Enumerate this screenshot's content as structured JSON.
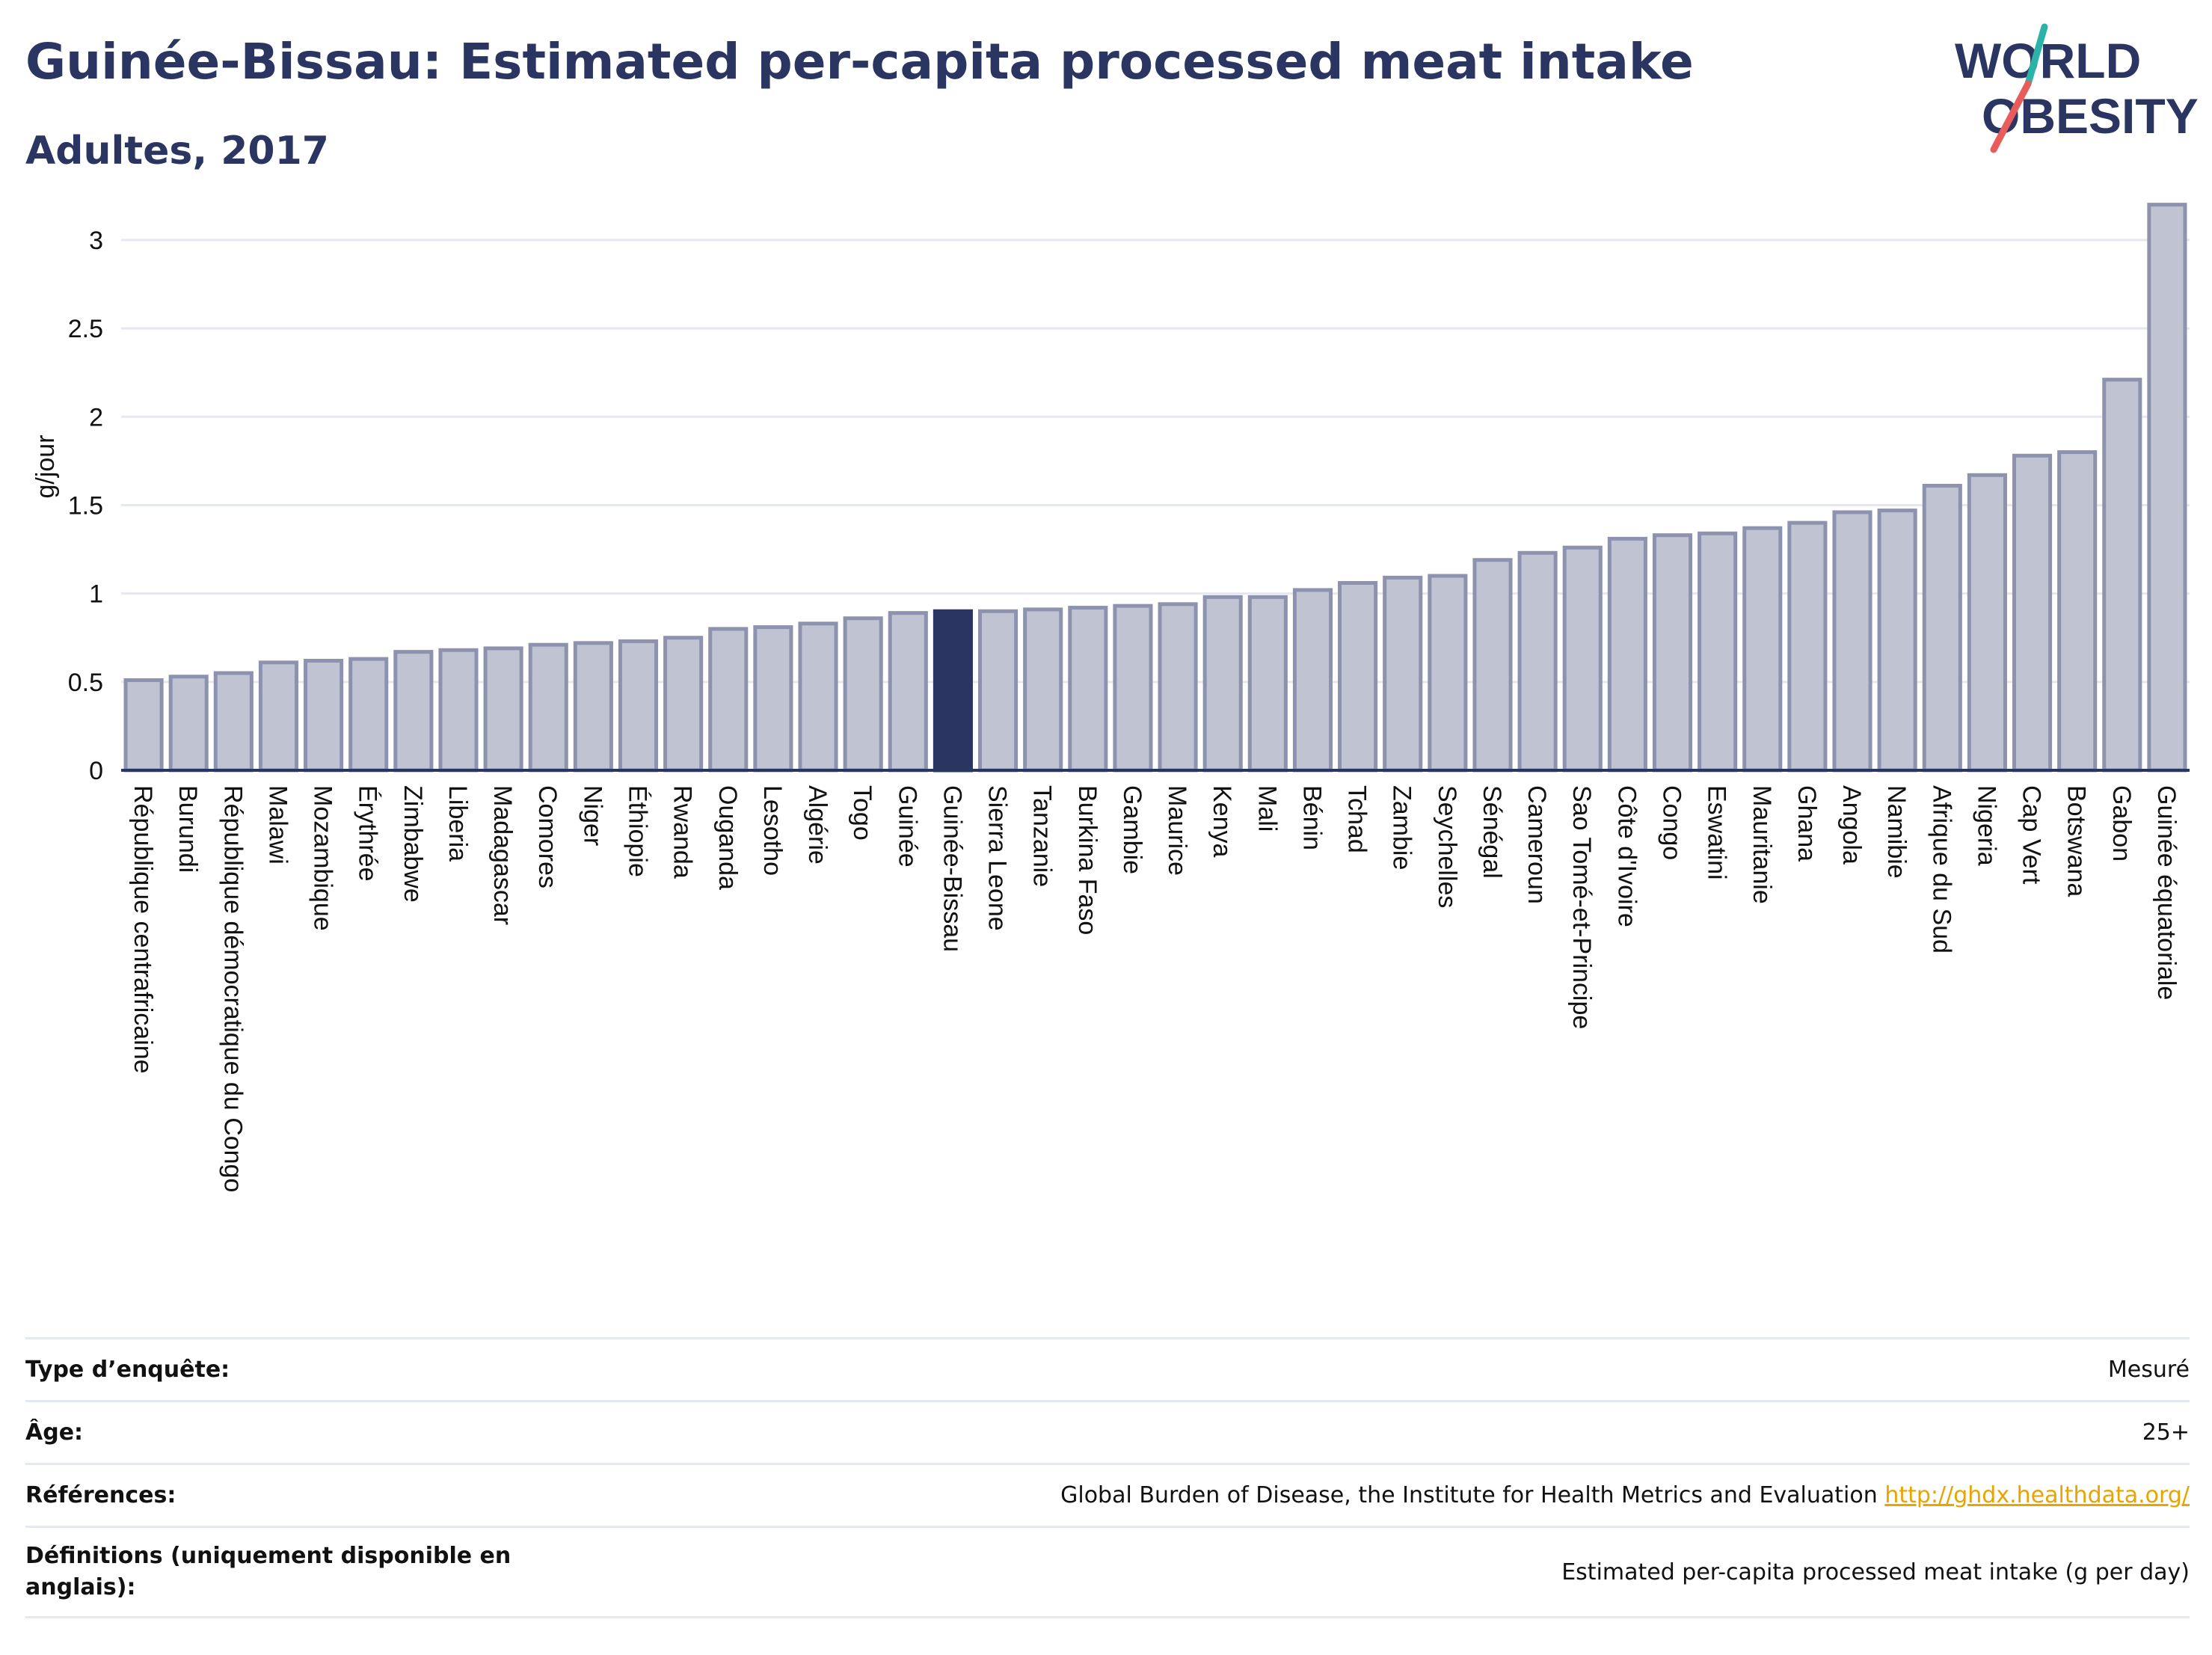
{
  "header": {
    "title": "Guinée-Bissau: Estimated per-capita processed meat intake",
    "subtitle": "Adultes, 2017"
  },
  "logo": {
    "line1": "WORLD",
    "line2": "OBESITY",
    "colors": {
      "text": "#2a3561",
      "slash_teal": "#2ab3a6",
      "slash_coral": "#e85c5c"
    }
  },
  "colors": {
    "bar": "#bfc3d2",
    "bar_stroke": "#8d93ae",
    "highlight": "#2a3561",
    "grid": "#e6e8ef",
    "link": "#e8a400"
  },
  "chart_data": {
    "type": "bar",
    "ylabel": "g/jour",
    "ylim": [
      0,
      3.3
    ],
    "yticks": [
      0,
      0.5,
      1,
      1.5,
      2,
      2.5,
      3
    ],
    "ytick_labels": [
      "0",
      "0.5",
      "1",
      "1.5",
      "2",
      "2.5",
      "3"
    ],
    "grid": true,
    "highlight": "Guinée-Bissau",
    "categories": [
      "République centrafricaine",
      "Burundi",
      "République démocratique du Congo",
      "Malawi",
      "Mozambique",
      "Érythrée",
      "Zimbabwe",
      "Liberia",
      "Madagascar",
      "Comores",
      "Niger",
      "Éthiopie",
      "Rwanda",
      "Ouganda",
      "Lesotho",
      "Algérie",
      "Togo",
      "Guinée",
      "Guinée-Bissau",
      "Sierra Leone",
      "Tanzanie",
      "Burkina Faso",
      "Gambie",
      "Maurice",
      "Kenya",
      "Mali",
      "Bénin",
      "Tchad",
      "Zambie",
      "Seychelles",
      "Sénégal",
      "Cameroun",
      "Sao Tomé-et-Principe",
      "Côte d'Ivoire",
      "Congo",
      "Eswatini",
      "Mauritanie",
      "Ghana",
      "Angola",
      "Namibie",
      "Afrique du Sud",
      "Nigeria",
      "Cap Vert",
      "Botswana",
      "Gabon",
      "Guinée équatoriale"
    ],
    "values": [
      0.51,
      0.53,
      0.55,
      0.61,
      0.62,
      0.63,
      0.67,
      0.68,
      0.69,
      0.71,
      0.72,
      0.73,
      0.75,
      0.8,
      0.81,
      0.83,
      0.86,
      0.89,
      0.9,
      0.9,
      0.91,
      0.92,
      0.93,
      0.94,
      0.98,
      0.98,
      1.02,
      1.06,
      1.09,
      1.1,
      1.19,
      1.23,
      1.26,
      1.31,
      1.33,
      1.34,
      1.37,
      1.4,
      1.46,
      1.47,
      1.61,
      1.67,
      1.78,
      1.8,
      2.21,
      3.2
    ]
  },
  "meta": {
    "rows": [
      {
        "label": "Type d’enquête:",
        "value": "Mesuré"
      },
      {
        "label": "Âge:",
        "value": "25+"
      },
      {
        "label": "Références:",
        "value": "Global Burden of Disease, the Institute for Health Metrics and Evaluation",
        "link": "http://ghdx.healthdata.org/"
      },
      {
        "label": "Définitions (uniquement disponible en anglais):",
        "value": "Estimated per-capita processed meat intake (g per day)"
      }
    ]
  }
}
